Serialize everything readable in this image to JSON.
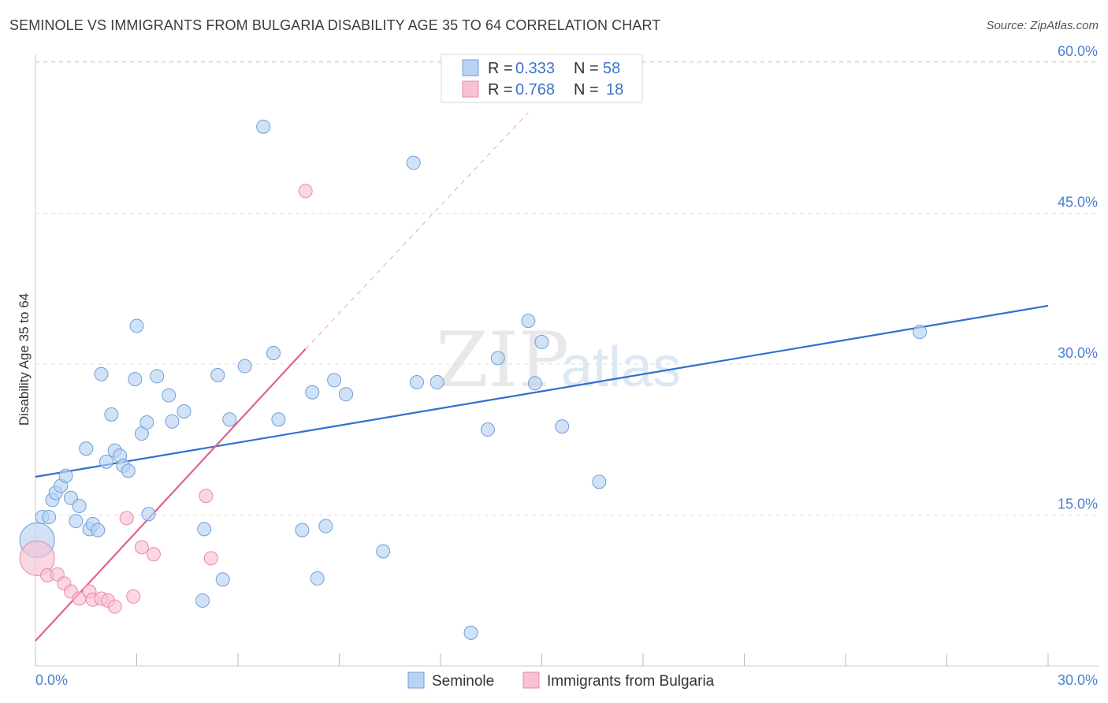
{
  "title": "SEMINOLE VS IMMIGRANTS FROM BULGARIA DISABILITY AGE 35 TO 64 CORRELATION CHART",
  "source": "Source: ZipAtlas.com",
  "watermark": {
    "zip": "ZIP",
    "atlas": "atlas"
  },
  "legend": {
    "rows": [
      {
        "r_label": "R =",
        "r_value": "0.333",
        "n_label": "N =",
        "n_value": "58"
      },
      {
        "r_label": "R =",
        "r_value": "0.768",
        "n_label": "N =",
        "n_value": "18"
      }
    ]
  },
  "colors": {
    "seminole_fill": "#b8d3f3",
    "seminole_stroke": "#6f9fd8",
    "seminole_line": "#2f6fcf",
    "bulgaria_fill": "#f7c2d2",
    "bulgaria_stroke": "#e88aa8",
    "bulgaria_line": "#e0628e",
    "tick_text": "#4a7fd0",
    "grid": "#dcdcdc"
  },
  "chart_data": {
    "type": "scatter",
    "title": "SEMINOLE VS IMMIGRANTS FROM BULGARIA DISABILITY AGE 35 TO 64 CORRELATION CHART",
    "xlabel": "",
    "ylabel": "Disability Age 35 to 64",
    "xlim": [
      0,
      30
    ],
    "ylim": [
      0,
      62
    ],
    "x_tick_labels": [
      "0.0%",
      "30.0%"
    ],
    "y_ticks": [
      15,
      30,
      45,
      60
    ],
    "y_tick_labels": [
      "15.0%",
      "30.0%",
      "45.0%",
      "60.0%"
    ],
    "grid": true,
    "legend_position": "top-center",
    "series": [
      {
        "name": "Seminole",
        "R": 0.333,
        "N": 58,
        "points": [
          [
            0.05,
            12.5
          ],
          [
            0.2,
            14.8
          ],
          [
            0.4,
            14.8
          ],
          [
            0.5,
            16.5
          ],
          [
            0.6,
            17.2
          ],
          [
            0.75,
            17.9
          ],
          [
            0.9,
            18.9
          ],
          [
            1.05,
            16.7
          ],
          [
            1.2,
            14.4
          ],
          [
            1.3,
            15.9
          ],
          [
            1.5,
            21.6
          ],
          [
            1.6,
            13.6
          ],
          [
            1.7,
            14.1
          ],
          [
            1.85,
            13.5
          ],
          [
            1.95,
            29.0
          ],
          [
            2.1,
            20.3
          ],
          [
            2.25,
            25.0
          ],
          [
            2.35,
            21.4
          ],
          [
            2.5,
            20.9
          ],
          [
            2.6,
            19.9
          ],
          [
            2.75,
            19.4
          ],
          [
            2.95,
            28.5
          ],
          [
            3.0,
            33.8
          ],
          [
            3.15,
            23.1
          ],
          [
            3.3,
            24.2
          ],
          [
            3.35,
            15.1
          ],
          [
            3.6,
            28.8
          ],
          [
            3.95,
            26.9
          ],
          [
            4.05,
            24.3
          ],
          [
            4.4,
            25.3
          ],
          [
            4.95,
            6.5
          ],
          [
            5.0,
            13.6
          ],
          [
            5.4,
            28.9
          ],
          [
            5.55,
            8.6
          ],
          [
            5.75,
            24.5
          ],
          [
            6.2,
            29.8
          ],
          [
            6.75,
            53.6
          ],
          [
            7.05,
            31.1
          ],
          [
            7.2,
            24.5
          ],
          [
            7.9,
            13.5
          ],
          [
            8.2,
            27.2
          ],
          [
            8.35,
            8.7
          ],
          [
            8.6,
            13.9
          ],
          [
            8.85,
            28.4
          ],
          [
            9.2,
            27.0
          ],
          [
            10.3,
            11.4
          ],
          [
            11.2,
            50.0
          ],
          [
            11.3,
            28.2
          ],
          [
            11.9,
            28.2
          ],
          [
            12.9,
            3.3
          ],
          [
            13.4,
            23.5
          ],
          [
            13.7,
            30.6
          ],
          [
            14.6,
            34.3
          ],
          [
            14.8,
            28.1
          ],
          [
            15.0,
            32.2
          ],
          [
            15.6,
            23.8
          ],
          [
            16.7,
            18.3
          ],
          [
            26.2,
            33.2
          ]
        ],
        "trend_line": {
          "x": [
            0,
            30
          ],
          "y": [
            18.8,
            35.8
          ]
        }
      },
      {
        "name": "Immigrants from Bulgaria",
        "R": 0.768,
        "N": 18,
        "points": [
          [
            0.05,
            10.7
          ],
          [
            0.35,
            9.0
          ],
          [
            0.65,
            9.1
          ],
          [
            0.85,
            8.2
          ],
          [
            1.05,
            7.4
          ],
          [
            1.3,
            6.7
          ],
          [
            1.6,
            7.4
          ],
          [
            1.7,
            6.6
          ],
          [
            1.95,
            6.7
          ],
          [
            2.15,
            6.5
          ],
          [
            2.35,
            5.9
          ],
          [
            2.9,
            6.9
          ],
          [
            2.7,
            14.7
          ],
          [
            3.15,
            11.8
          ],
          [
            3.5,
            11.1
          ],
          [
            5.05,
            16.9
          ],
          [
            5.2,
            10.7
          ],
          [
            8.0,
            47.2
          ]
        ],
        "trend_line": {
          "x": [
            0,
            8.0
          ],
          "y": [
            2.5,
            31.5
          ]
        },
        "trend_extension": {
          "x": [
            8.0,
            14.6
          ],
          "y": [
            31.5,
            55.0
          ]
        }
      }
    ]
  },
  "bottom_legend": {
    "items": [
      "Seminole",
      "Immigrants from Bulgaria"
    ]
  }
}
